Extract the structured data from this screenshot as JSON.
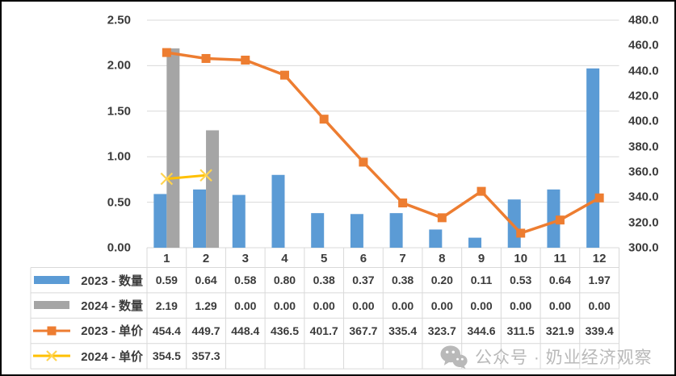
{
  "chart_data": {
    "type": "bar+line combo",
    "categories": [
      "1",
      "2",
      "3",
      "4",
      "5",
      "6",
      "7",
      "8",
      "9",
      "10",
      "11",
      "12"
    ],
    "series": [
      {
        "name": "2023 - 数量",
        "type": "bar",
        "axis": "left",
        "color": "#5b9bd5",
        "decimals": 2,
        "values": [
          0.59,
          0.64,
          0.58,
          0.8,
          0.38,
          0.37,
          0.38,
          0.2,
          0.11,
          0.53,
          0.64,
          1.97
        ]
      },
      {
        "name": "2024 - 数量",
        "type": "bar",
        "axis": "left",
        "color": "#a5a5a5",
        "decimals": 2,
        "values": [
          2.19,
          1.29,
          0.0,
          0.0,
          0.0,
          0.0,
          0.0,
          0.0,
          0.0,
          0.0,
          0.0,
          0.0
        ]
      },
      {
        "name": "2023 - 单价",
        "type": "line",
        "marker": "square",
        "axis": "right",
        "color": "#ed7d31",
        "decimals": 1,
        "values": [
          454.4,
          449.7,
          448.4,
          436.5,
          401.7,
          367.7,
          335.4,
          323.7,
          344.6,
          311.5,
          321.9,
          339.4
        ]
      },
      {
        "name": "2024 - 单价",
        "type": "line",
        "marker": "x",
        "axis": "right",
        "color": "#ffc000",
        "marker_color": "#ffd34f",
        "decimals": 1,
        "values": [
          354.5,
          357.3,
          null,
          null,
          null,
          null,
          null,
          null,
          null,
          null,
          null,
          null
        ]
      }
    ],
    "left_axis": {
      "min": 0,
      "max": 2.5,
      "ticks": [
        "2.50",
        "2.00",
        "1.50",
        "1.00",
        "0.50",
        "0.00"
      ]
    },
    "right_axis": {
      "min": 300,
      "max": 480,
      "ticks": [
        "480.0",
        "460.0",
        "440.0",
        "420.0",
        "400.0",
        "380.0",
        "360.0",
        "340.0",
        "320.0",
        "300.0"
      ]
    },
    "title": "",
    "gridlines": true,
    "legend_position": "table-left",
    "data_table_shown": true
  },
  "watermark": {
    "text": "公众号 · 奶业经济观察"
  },
  "colors": {
    "grid": "#d9d9d9",
    "table_border": "#d9d9d9",
    "text": "#3b3b3b",
    "watermark": "#b9b9b9",
    "frame_border": "#000000"
  }
}
